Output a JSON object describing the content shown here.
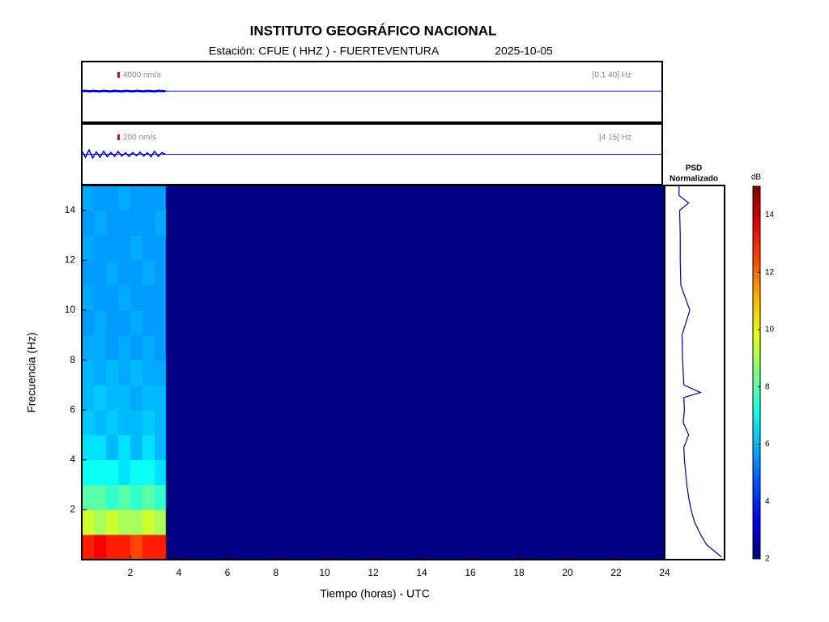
{
  "chart_data": {
    "type": "spectrogram",
    "title": "INSTITUTO GEOGRÁFICO NACIONAL",
    "subtitle": "Estación:  CFUE ( HHZ ) - FUERTEVENTURA",
    "date": "2025-10-05",
    "xlabel": "Tiempo (horas) - UTC",
    "ylabel": "Frecuencia  (Hz)",
    "xlim": [
      0,
      24
    ],
    "xticks": [
      2,
      4,
      6,
      8,
      10,
      12,
      14,
      16,
      18,
      20,
      22,
      24
    ],
    "ylim": [
      0,
      15
    ],
    "yticks": [
      2,
      4,
      6,
      8,
      10,
      12,
      14
    ],
    "x_edges": [
      0,
      0.5,
      1,
      1.5,
      2,
      2.5,
      3,
      3.45
    ],
    "y_edges": [
      0,
      1,
      2,
      3,
      4,
      5,
      6,
      7,
      8,
      9,
      10,
      11,
      12,
      13,
      14,
      15
    ],
    "values": [
      [
        13,
        13.5,
        13,
        13,
        12.5,
        13,
        13
      ],
      [
        9.5,
        9,
        9.5,
        9,
        9,
        9.5,
        9
      ],
      [
        8,
        8,
        7.5,
        8,
        7.5,
        8,
        7.5
      ],
      [
        7,
        7,
        7,
        6.5,
        7,
        7,
        6.5
      ],
      [
        6.5,
        6.5,
        6,
        6.5,
        6,
        6.5,
        6
      ],
      [
        6.2,
        6,
        6.2,
        6,
        6,
        6.2,
        6
      ],
      [
        6,
        6.2,
        6,
        6,
        5.8,
        6,
        6
      ],
      [
        6,
        5.8,
        6,
        5.8,
        6,
        5.8,
        5.8
      ],
      [
        5.8,
        5.8,
        5.6,
        5.8,
        5.6,
        5.8,
        5.6
      ],
      [
        5.6,
        5.8,
        5.6,
        5.6,
        5.8,
        5.6,
        5.6
      ],
      [
        5.8,
        5.6,
        5.6,
        5.8,
        5.6,
        5.6,
        5.6
      ],
      [
        5.6,
        5.6,
        5.8,
        5.6,
        5.6,
        5.8,
        5.6
      ],
      [
        5.8,
        5.6,
        5.6,
        5.6,
        5.8,
        5.6,
        5.6
      ],
      [
        5.6,
        5.8,
        5.6,
        5.6,
        5.6,
        5.6,
        5.8
      ],
      [
        5.8,
        5.6,
        5.6,
        5.8,
        5.6,
        5.6,
        5.6
      ]
    ],
    "colorbar": {
      "label": "dB",
      "lim": [
        2,
        15
      ],
      "ticks": [
        2,
        4,
        6,
        8,
        10,
        12,
        14
      ],
      "colormap": "jet"
    },
    "traces": [
      {
        "scale_label": "4000 nm/s",
        "band_label": "[0.1 40] Hz",
        "color": "#0000cc",
        "ylim": [
          -1,
          1
        ],
        "x": [
          0,
          0.15,
          0.3,
          0.45,
          0.6,
          0.75,
          0.9,
          1.05,
          1.2,
          1.35,
          1.5,
          1.65,
          1.8,
          1.95,
          2.1,
          2.25,
          2.4,
          2.55,
          2.7,
          2.85,
          3,
          3.15,
          3.3,
          3.45
        ],
        "values": [
          0,
          0.01,
          -0.01,
          0.01,
          0,
          -0.01,
          0.01,
          0,
          -0.01,
          0.01,
          0,
          -0.01,
          0.01,
          0,
          -0.01,
          0.01,
          0,
          -0.01,
          0.01,
          0,
          -0.01,
          0.01,
          0,
          0
        ]
      },
      {
        "scale_label": "200 nm/s",
        "band_label": "[4 15] Hz",
        "color": "#0000cc",
        "ylim": [
          -1,
          1
        ],
        "x": [
          0,
          0.15,
          0.3,
          0.45,
          0.6,
          0.75,
          0.9,
          1.05,
          1.2,
          1.35,
          1.5,
          1.65,
          1.8,
          1.95,
          2.1,
          2.25,
          2.4,
          2.55,
          2.7,
          2.85,
          3,
          3.15,
          3.3,
          3.45
        ],
        "values": [
          0.12,
          -0.1,
          0.14,
          -0.12,
          0.08,
          -0.1,
          0.1,
          -0.08,
          0.06,
          -0.07,
          0.09,
          -0.06,
          0.05,
          -0.07,
          0.06,
          -0.05,
          0.07,
          -0.06,
          0.05,
          -0.08,
          0.1,
          -0.07,
          0.06,
          0
        ]
      }
    ],
    "psd": {
      "title": "PSD",
      "subtitle": "Normalizado",
      "color": "#00008b",
      "xlim": [
        0,
        1
      ],
      "freq": [
        0.1,
        0.3,
        0.6,
        1,
        1.5,
        2,
        2.5,
        3,
        3.5,
        4,
        4.5,
        5,
        5.5,
        6,
        6.5,
        6.7,
        7,
        7.5,
        8,
        9,
        10,
        11,
        12,
        13,
        14,
        14.3,
        14.6,
        15
      ],
      "values": [
        0.95,
        0.85,
        0.7,
        0.6,
        0.5,
        0.44,
        0.4,
        0.37,
        0.35,
        0.33,
        0.32,
        0.4,
        0.31,
        0.33,
        0.32,
        0.6,
        0.32,
        0.31,
        0.3,
        0.29,
        0.42,
        0.27,
        0.26,
        0.26,
        0.25,
        0.4,
        0.24,
        0.24
      ]
    }
  }
}
